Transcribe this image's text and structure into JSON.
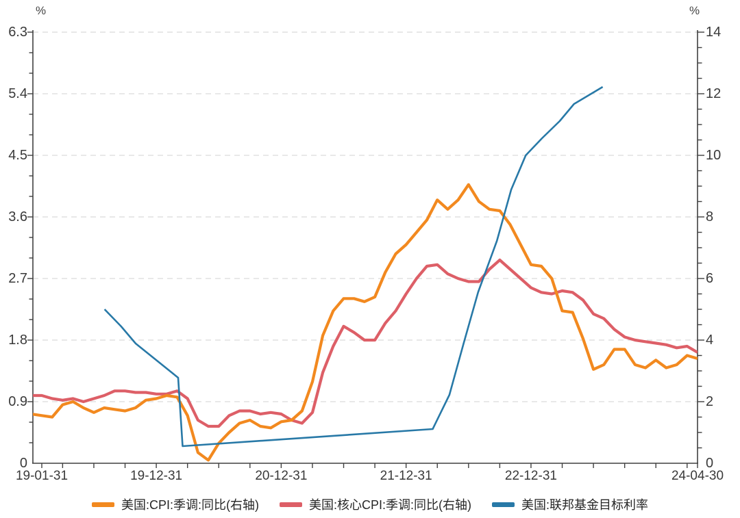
{
  "chart_data": {
    "type": "line",
    "title": "",
    "grid": {
      "show": true,
      "style": "dashed",
      "color": "#DBDBDB"
    },
    "legend_position": "bottom",
    "axis_color": "#3F3F3F",
    "y_left": {
      "unit": "%",
      "min": 0,
      "max": 6.3,
      "minor_step": 0.3,
      "major_ticks": [
        0,
        0.9,
        1.8,
        2.7,
        3.6,
        4.5,
        5.4,
        6.3
      ],
      "tick_labels": [
        "0",
        "0.9",
        "1.8",
        "2.7",
        "3.6",
        "4.5",
        "5.4",
        "6.3"
      ]
    },
    "y_right": {
      "unit": "%",
      "min": 0,
      "max": 14,
      "minor_step": 0.5,
      "major_ticks": [
        0,
        2,
        4,
        6,
        8,
        10,
        12,
        14
      ],
      "tick_labels": [
        "0",
        "2",
        "4",
        "6",
        "8",
        "10",
        "12",
        "14"
      ]
    },
    "x": {
      "start": "2019-01-31",
      "end": "2024-04-30",
      "months_span": 63,
      "tick_interval": "quarterly",
      "labels": [
        {
          "text": "19-01-31",
          "month_idx": 0
        },
        {
          "text": "19-12-31",
          "month_idx": 11
        },
        {
          "text": "20-12-31",
          "month_idx": 23
        },
        {
          "text": "21-12-31",
          "month_idx": 35
        },
        {
          "text": "22-12-31",
          "month_idx": 47
        },
        {
          "text": "24-04-30",
          "month_idx": 63
        }
      ]
    },
    "series": [
      {
        "name": "美国:CPI:季调:同比(右轴)",
        "axis": "right",
        "color": "#F2891F",
        "line_width": 4.2,
        "z_order": 2,
        "start_month": "2018-12",
        "start_idx": -1,
        "monthly_values": [
          1.6,
          1.55,
          1.5,
          1.9,
          2.0,
          1.8,
          1.65,
          1.8,
          1.75,
          1.7,
          1.8,
          2.05,
          2.1,
          2.2,
          2.15,
          1.55,
          0.35,
          0.1,
          0.65,
          1.0,
          1.3,
          1.4,
          1.2,
          1.15,
          1.35,
          1.4,
          1.7,
          2.65,
          4.15,
          4.95,
          5.35,
          5.35,
          5.25,
          5.4,
          6.2,
          6.8,
          7.1,
          7.5,
          7.9,
          8.55,
          8.25,
          8.55,
          9.05,
          8.5,
          8.25,
          8.2,
          7.75,
          7.1,
          6.45,
          6.4,
          6.0,
          4.95,
          4.9,
          4.05,
          3.05,
          3.2,
          3.7,
          3.7,
          3.2,
          3.1,
          3.35,
          3.1,
          3.2,
          3.5,
          3.4
        ]
      },
      {
        "name": "美国:核心CPI:季调:同比(右轴)",
        "axis": "right",
        "color": "#DD5F67",
        "line_width": 4.2,
        "z_order": 1,
        "start_month": "2018-12",
        "start_idx": -1,
        "monthly_values": [
          2.2,
          2.2,
          2.1,
          2.05,
          2.1,
          2.0,
          2.1,
          2.2,
          2.35,
          2.35,
          2.3,
          2.3,
          2.25,
          2.25,
          2.35,
          2.1,
          1.4,
          1.2,
          1.2,
          1.55,
          1.7,
          1.7,
          1.6,
          1.65,
          1.6,
          1.4,
          1.3,
          1.65,
          2.95,
          3.8,
          4.45,
          4.25,
          4.0,
          4.0,
          4.55,
          4.95,
          5.5,
          6.0,
          6.4,
          6.45,
          6.15,
          6.0,
          5.9,
          5.9,
          6.3,
          6.6,
          6.3,
          6.0,
          5.7,
          5.55,
          5.5,
          5.6,
          5.55,
          5.3,
          4.85,
          4.7,
          4.35,
          4.1,
          4.0,
          3.95,
          3.9,
          3.85,
          3.75,
          3.8,
          3.6
        ]
      },
      {
        "name": "美国:联邦基金目标利率",
        "axis": "left",
        "color": "#2879A7",
        "line_width": 2.6,
        "z_order": 3,
        "points": [
          [
            "2019-08-01",
            2.25
          ],
          [
            "2019-09-19",
            2.0
          ],
          [
            "2019-10-31",
            1.75
          ],
          [
            "2020-03-03",
            1.25
          ],
          [
            "2020-03-16",
            0.25
          ],
          [
            "2022-03-17",
            0.5
          ],
          [
            "2022-05-05",
            1.0
          ],
          [
            "2022-06-16",
            1.75
          ],
          [
            "2022-07-28",
            2.5
          ],
          [
            "2022-09-22",
            3.25
          ],
          [
            "2022-11-03",
            4.0
          ],
          [
            "2022-12-15",
            4.5
          ],
          [
            "2023-02-02",
            4.75
          ],
          [
            "2023-03-23",
            5.0
          ],
          [
            "2023-05-04",
            5.25
          ],
          [
            "2023-07-27",
            5.5
          ]
        ]
      }
    ]
  }
}
